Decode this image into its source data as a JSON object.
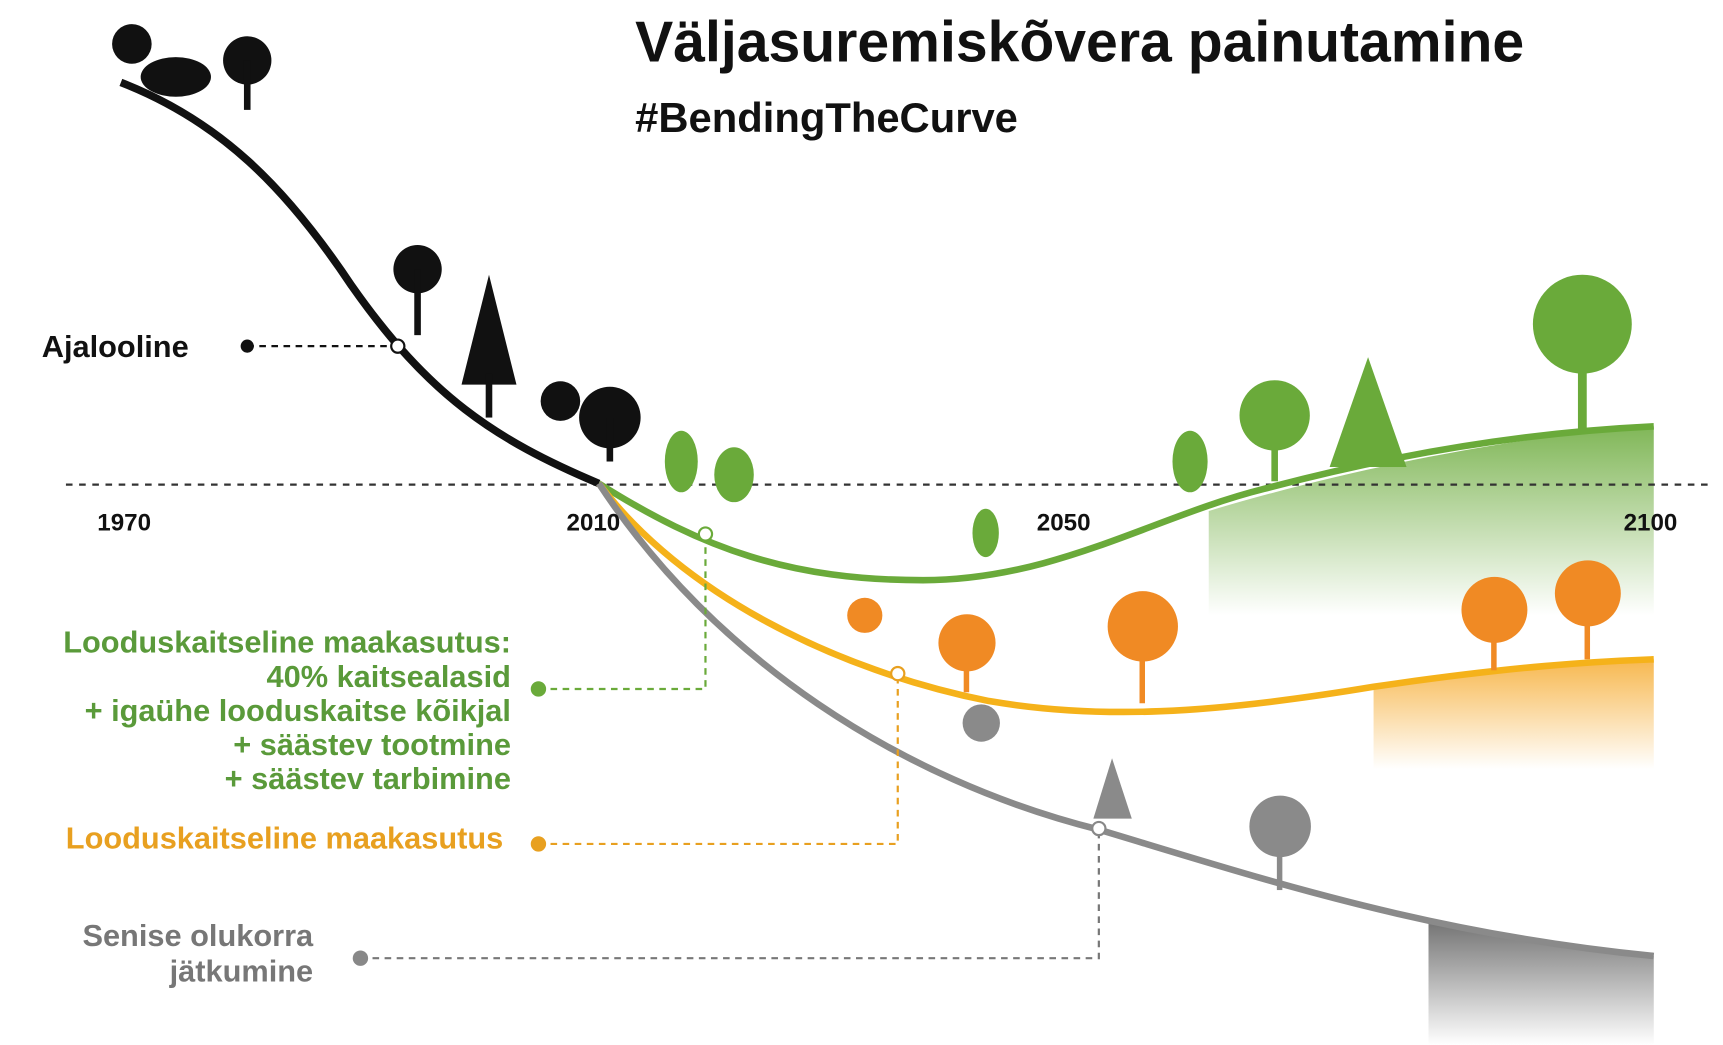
{
  "header": {
    "title": "Väljasuremiskõvera painutamine",
    "subtitle": "#BendingTheCurve"
  },
  "timeline": {
    "years": [
      "1970",
      "2010",
      "2050",
      "2100"
    ]
  },
  "scenarios": [
    {
      "label": [
        "Ajalooline"
      ]
    },
    {
      "label": [
        "Looduskaitseline maakasutus:",
        "40% kaitsealasid",
        "+ igaühe looduskaitse kõikjal",
        "+ säästev tootmine",
        "+ säästev tarbimine"
      ]
    },
    {
      "label": [
        "Looduskaitseline maakasutus"
      ]
    },
    {
      "label": [
        "Senise olukorra",
        "jätkumine"
      ]
    }
  ]
}
